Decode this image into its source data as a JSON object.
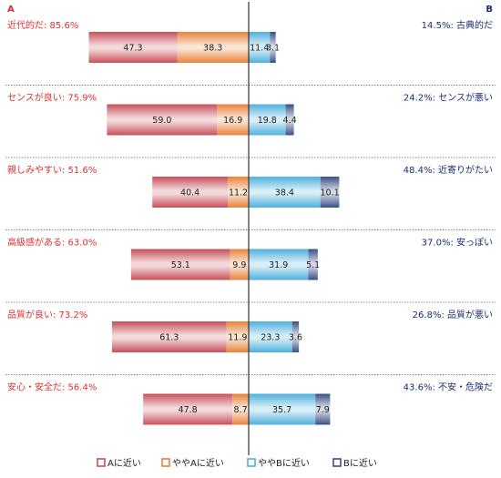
{
  "chart_data": {
    "type": "bar",
    "stacked": "diverging-horizontal",
    "header_left": "A",
    "header_right": "B",
    "series": [
      {
        "name": "Aに近い",
        "color": "#c7505a"
      },
      {
        "name": "ややAに近い",
        "color": "#e8823a"
      },
      {
        "name": "ややBに近い",
        "color": "#4fb0dc"
      },
      {
        "name": "Bに近い",
        "color": "#3a4f85"
      }
    ],
    "rows": [
      {
        "left_label": "近代的だ: 85.6%",
        "right_label": "14.5%: 古典的だ",
        "values": [
          47.3,
          38.3,
          11.4,
          3.1
        ]
      },
      {
        "left_label": "センスが良い: 75.9%",
        "right_label": "24.2%: センスが悪い",
        "values": [
          59.0,
          16.9,
          19.8,
          4.4
        ]
      },
      {
        "left_label": "親しみやすい: 51.6%",
        "right_label": "48.4%: 近寄りがたい",
        "values": [
          40.4,
          11.2,
          38.4,
          10.1
        ]
      },
      {
        "left_label": "高級感がある: 63.0%",
        "right_label": "37.0%: 安っぽい",
        "values": [
          53.1,
          9.9,
          31.9,
          5.1
        ]
      },
      {
        "left_label": "品質が良い: 73.2%",
        "right_label": "26.8%: 品質が悪い",
        "values": [
          61.3,
          11.9,
          23.3,
          3.6
        ]
      },
      {
        "left_label": "安心・安全だ: 56.4%",
        "right_label": "43.6%: 不安・危険だ",
        "values": [
          47.8,
          8.7,
          35.7,
          7.9
        ]
      }
    ],
    "colors": {
      "left_label": "#e03030",
      "right_label": "#1a2f6b",
      "header": "#d03030",
      "header_right": "#1a2f6b"
    }
  }
}
